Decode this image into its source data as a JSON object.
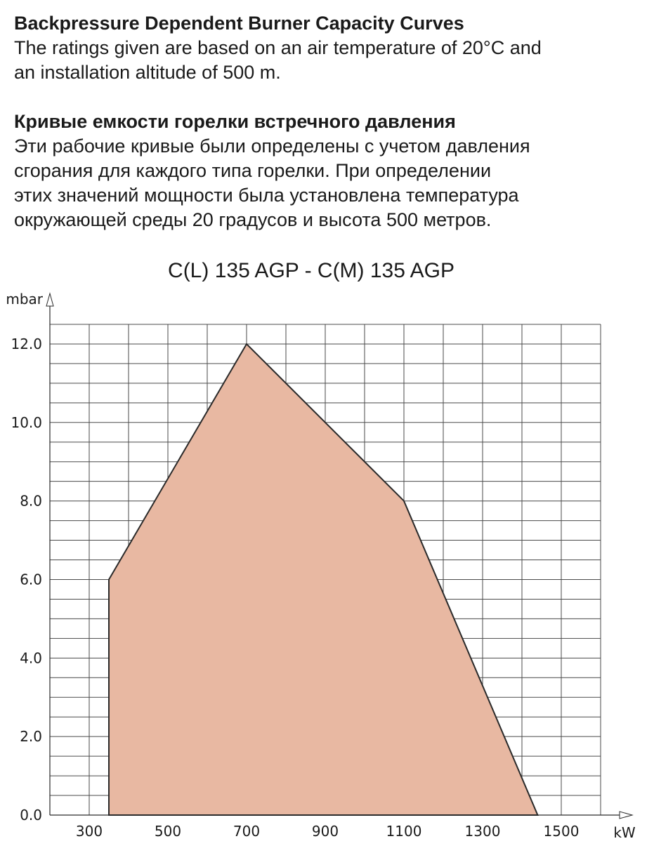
{
  "intro_en": {
    "heading": "Backpressure Dependent Burner Capacity Curves",
    "lines": [
      "The ratings given are based on an air temperature of 20°C and",
      "an installation altitude of 500 m."
    ]
  },
  "intro_ru": {
    "heading": "Кривые емкости горелки встречного давления",
    "lines": [
      "Эти рабочие кривые были определены с учетом давления",
      "сгорания для каждого типа горелки. При определении",
      "этих значений мощности была установлена температура",
      "окружающей среды 20 градусов и высота 500 метров."
    ]
  },
  "chart_data": {
    "type": "area",
    "title": "C(L) 135 AGP - C(M) 135 AGP",
    "xlabel": "kW",
    "ylabel": "mbar",
    "xlim": [
      200,
      1600
    ],
    "ylim": [
      0,
      12.5
    ],
    "x_ticks": [
      300,
      500,
      700,
      900,
      1100,
      1300,
      1500
    ],
    "x_tick_labels": [
      "300",
      "500",
      "700",
      "900",
      "1100",
      "1300",
      "1500"
    ],
    "y_ticks": [
      0,
      2,
      4,
      6,
      8,
      10,
      12
    ],
    "y_tick_labels": [
      "0.0",
      "2.0",
      "4.0",
      "6.0",
      "8.0",
      "10.0",
      "12.0"
    ],
    "grid": true,
    "fill_color": "#e8b8a2",
    "line_color": "#2a2a2a",
    "series": [
      {
        "x": [
          350,
          350,
          700,
          1100,
          1440
        ],
        "y": [
          0,
          6.0,
          12.0,
          8.0,
          0
        ]
      }
    ]
  }
}
